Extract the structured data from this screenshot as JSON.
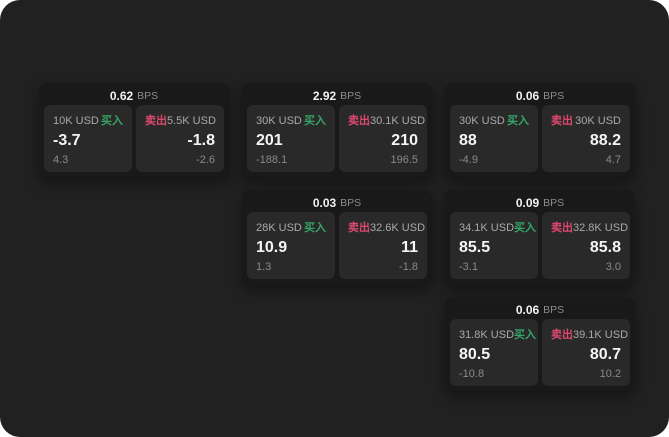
{
  "labels": {
    "bps": "BPS",
    "buy": "买入",
    "sell": "卖出"
  },
  "colors": {
    "page_background": "#212121",
    "card_background": "#191919",
    "panel_background": "#292929",
    "buy_green": "#36a566",
    "sell_red": "#dc486e",
    "value_white": "#f5f5f5",
    "muted_gray": "#8a8a8a"
  },
  "cards": [
    {
      "bps": "0.62",
      "buy": {
        "amount": "10K USD",
        "value": "-3.7",
        "delta": "4.3"
      },
      "sell": {
        "amount": "5.5K USD",
        "value": "-1.8",
        "delta": "-2.6"
      }
    },
    {
      "bps": "2.92",
      "buy": {
        "amount": "30K USD",
        "value": "201",
        "delta": "-188.1"
      },
      "sell": {
        "amount": "30.1K USD",
        "value": "210",
        "delta": "196.5"
      }
    },
    {
      "bps": "0.06",
      "buy": {
        "amount": "30K USD",
        "value": "88",
        "delta": "-4.9"
      },
      "sell": {
        "amount": "30K USD",
        "value": "88.2",
        "delta": "4.7"
      }
    },
    {
      "bps": "0.03",
      "buy": {
        "amount": "28K USD",
        "value": "10.9",
        "delta": "1.3"
      },
      "sell": {
        "amount": "32.6K USD",
        "value": "11",
        "delta": "-1.8"
      }
    },
    {
      "bps": "0.09",
      "buy": {
        "amount": "34.1K USD",
        "value": "85.5",
        "delta": "-3.1"
      },
      "sell": {
        "amount": "32.8K USD",
        "value": "85.8",
        "delta": "3.0"
      }
    },
    {
      "bps": "0.06",
      "buy": {
        "amount": "31.8K USD",
        "value": "80.5",
        "delta": "-10.8"
      },
      "sell": {
        "amount": "39.1K USD",
        "value": "80.7",
        "delta": "10.2"
      }
    }
  ]
}
